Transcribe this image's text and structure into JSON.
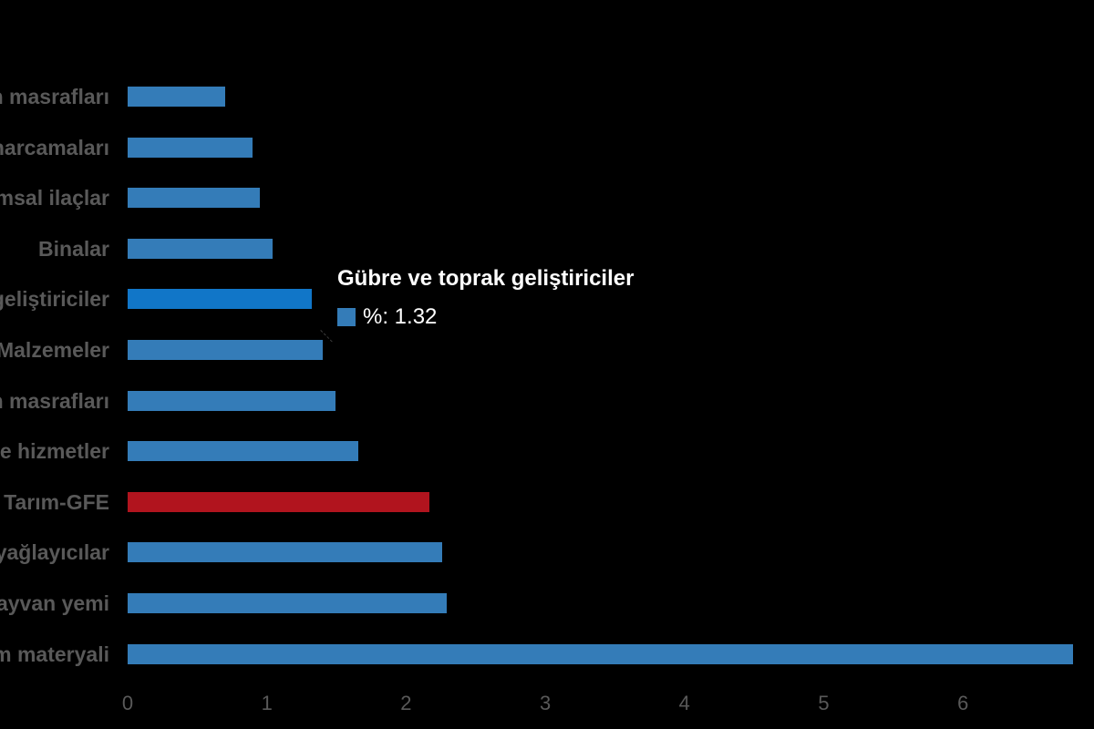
{
  "chart_data": {
    "type": "bar",
    "orientation": "horizontal",
    "title": "",
    "xlabel": "",
    "ylabel": "",
    "categories": [
      "n masrafları",
      "harcamaları",
      "ımsal ilaçlar",
      "Binalar",
      "geliştiriciler",
      "Malzemeler",
      "n masrafları",
      "ve hizmetler",
      "Tarım-GFE",
      "yağlayıcılar",
      "layvan yemi",
      "m materyali"
    ],
    "values": [
      0.7,
      0.9,
      0.95,
      1.04,
      1.32,
      1.4,
      1.49,
      1.66,
      2.17,
      2.26,
      2.29,
      6.79
    ],
    "series_name": "%",
    "x_ticks": [
      0,
      1,
      2,
      3,
      4,
      5,
      6
    ],
    "xlim": [
      0,
      6.9
    ],
    "grid": false,
    "legend_position": "none",
    "highlight_index": 4,
    "total_index": 8,
    "colors": {
      "bar": "#347CB8",
      "highlight": "#1176C8",
      "total": "#B1141E",
      "label": "#595959",
      "tick": "#595959",
      "background": "#000000"
    }
  },
  "tooltip": {
    "title": "Gübre ve toprak geliştiriciler",
    "series_label": "%",
    "value": "1.32",
    "value_text": "%: 1.32",
    "swatch_color": "#347CB8"
  }
}
